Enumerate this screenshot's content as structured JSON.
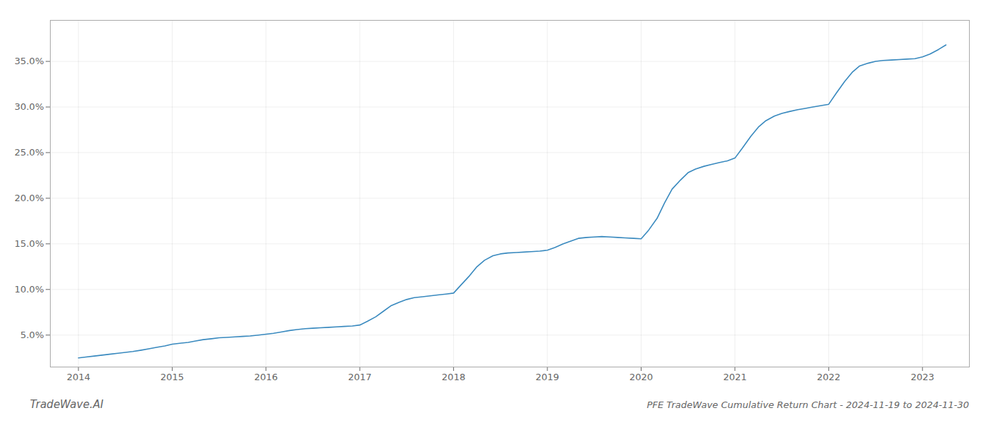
{
  "chart_data": {
    "type": "line",
    "title": "PFE TradeWave Cumulative Return Chart - 2024-11-19 to 2024-11-30",
    "annotations": [
      "TradeWave.AI"
    ],
    "x": [
      2014.0,
      2014.08,
      2014.17,
      2014.25,
      2014.33,
      2014.42,
      2014.5,
      2014.58,
      2014.67,
      2014.75,
      2014.83,
      2014.92,
      2015.0,
      2015.08,
      2015.17,
      2015.25,
      2015.33,
      2015.42,
      2015.5,
      2015.58,
      2015.67,
      2015.75,
      2015.83,
      2015.92,
      2016.0,
      2016.08,
      2016.17,
      2016.25,
      2016.33,
      2016.42,
      2016.5,
      2016.58,
      2016.67,
      2016.75,
      2016.83,
      2016.92,
      2017.0,
      2017.08,
      2017.17,
      2017.25,
      2017.33,
      2017.42,
      2017.5,
      2017.58,
      2017.67,
      2017.75,
      2017.83,
      2017.92,
      2018.0,
      2018.08,
      2018.17,
      2018.25,
      2018.33,
      2018.42,
      2018.5,
      2018.58,
      2018.67,
      2018.75,
      2018.83,
      2018.92,
      2019.0,
      2019.08,
      2019.17,
      2019.25,
      2019.33,
      2019.42,
      2019.5,
      2019.58,
      2019.67,
      2019.75,
      2019.83,
      2019.92,
      2020.0,
      2020.08,
      2020.17,
      2020.25,
      2020.33,
      2020.42,
      2020.5,
      2020.58,
      2020.67,
      2020.75,
      2020.83,
      2020.92,
      2021.0,
      2021.08,
      2021.17,
      2021.25,
      2021.33,
      2021.42,
      2021.5,
      2021.58,
      2021.67,
      2021.75,
      2021.83,
      2021.92,
      2022.0,
      2022.08,
      2022.17,
      2022.25,
      2022.33,
      2022.42,
      2022.5,
      2022.58,
      2022.67,
      2022.75,
      2022.83,
      2022.92,
      2023.0,
      2023.08,
      2023.17,
      2023.25
    ],
    "values": [
      2.5,
      2.6,
      2.7,
      2.8,
      2.9,
      3.0,
      3.1,
      3.2,
      3.35,
      3.5,
      3.65,
      3.8,
      4.0,
      4.1,
      4.2,
      4.35,
      4.5,
      4.6,
      4.7,
      4.75,
      4.8,
      4.85,
      4.9,
      5.0,
      5.1,
      5.2,
      5.35,
      5.5,
      5.6,
      5.7,
      5.75,
      5.8,
      5.85,
      5.9,
      5.95,
      6.0,
      6.1,
      6.5,
      7.0,
      7.6,
      8.2,
      8.6,
      8.9,
      9.1,
      9.2,
      9.3,
      9.4,
      9.5,
      9.6,
      10.5,
      11.5,
      12.5,
      13.2,
      13.7,
      13.9,
      14.0,
      14.05,
      14.1,
      14.15,
      14.2,
      14.3,
      14.6,
      15.0,
      15.3,
      15.6,
      15.7,
      15.75,
      15.8,
      15.75,
      15.7,
      15.65,
      15.6,
      15.55,
      16.5,
      17.8,
      19.5,
      21.0,
      22.0,
      22.8,
      23.2,
      23.5,
      23.7,
      23.9,
      24.1,
      24.4,
      25.5,
      26.8,
      27.8,
      28.5,
      29.0,
      29.3,
      29.5,
      29.7,
      29.85,
      30.0,
      30.15,
      30.3,
      31.5,
      32.8,
      33.8,
      34.5,
      34.8,
      35.0,
      35.1,
      35.15,
      35.2,
      35.25,
      35.3,
      35.5,
      35.8,
      36.3,
      36.8
    ],
    "color": "#3a8abf",
    "xlim": [
      2013.7,
      2023.5
    ],
    "xticks": [
      2014,
      2015,
      2016,
      2017,
      2018,
      2019,
      2020,
      2021,
      2022,
      2023
    ],
    "ylim": [
      1.5,
      39.5
    ],
    "yticks": [
      {
        "value": 5.0,
        "label": "5.0%"
      },
      {
        "value": 10.0,
        "label": "10.0%"
      },
      {
        "value": 15.0,
        "label": "15.0%"
      },
      {
        "value": 20.0,
        "label": "20.0%"
      },
      {
        "value": 25.0,
        "label": "25.0%"
      },
      {
        "value": 30.0,
        "label": "30.0%"
      },
      {
        "value": 35.0,
        "label": "35.0%"
      }
    ],
    "grid": true
  }
}
